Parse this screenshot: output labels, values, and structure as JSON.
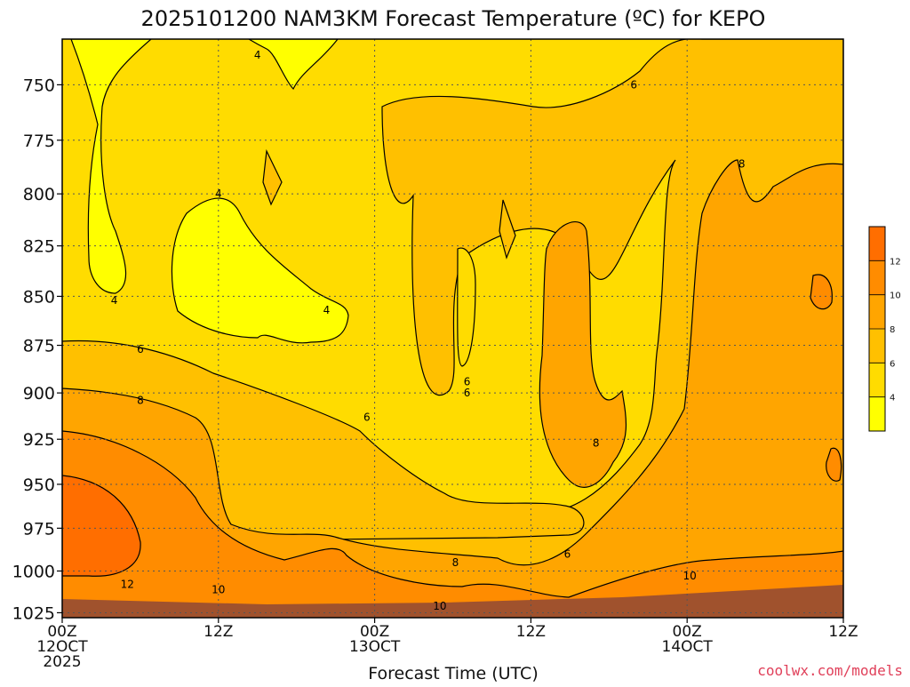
{
  "chart_data": {
    "type": "heatmap",
    "title": "2025101200 NAM3KM Forecast Temperature (ºC) for KEPO",
    "xlabel": "Forecast Time (UTC)",
    "ylabel": "",
    "credit": "coolwx.com/models",
    "y_ticks": [
      "750",
      "775",
      "800",
      "825",
      "850",
      "875",
      "900",
      "925",
      "950",
      "975",
      "1000",
      "1025"
    ],
    "y_values": [
      750,
      775,
      800,
      825,
      850,
      875,
      900,
      925,
      950,
      975,
      1000,
      1025
    ],
    "ylim": [
      730,
      1028
    ],
    "y_scale": "log",
    "x_ticks": [
      {
        "hour": 0,
        "label1": "00Z",
        "label2": "12OCT",
        "label3": "2025"
      },
      {
        "hour": 12,
        "label1": "12Z",
        "label2": "",
        "label3": ""
      },
      {
        "hour": 24,
        "label1": "00Z",
        "label2": "13OCT",
        "label3": ""
      },
      {
        "hour": 36,
        "label1": "12Z",
        "label2": "",
        "label3": ""
      },
      {
        "hour": 48,
        "label1": "00Z",
        "label2": "14OCT",
        "label3": ""
      },
      {
        "hour": 60,
        "label1": "12Z",
        "label2": "",
        "label3": ""
      }
    ],
    "xlim": [
      0,
      60
    ],
    "grid": true,
    "colorbar": {
      "levels": [
        2,
        4,
        6,
        8,
        10,
        12,
        14
      ],
      "tick_labels": [
        "4",
        "6",
        "8",
        "10",
        "12"
      ],
      "colors": [
        "#ffff00",
        "#ffdc00",
        "#ffc000",
        "#ffa500",
        "#ff8c00",
        "#ff6e00"
      ],
      "placement": "right"
    },
    "contour_labels": [
      {
        "text": "4",
        "hour": 15.0,
        "p": 737
      },
      {
        "text": "4",
        "hour": 12.0,
        "p": 800
      },
      {
        "text": "4",
        "hour": 4.0,
        "p": 852
      },
      {
        "text": "4",
        "hour": 20.3,
        "p": 857
      },
      {
        "text": "6",
        "hour": 43.9,
        "p": 750
      },
      {
        "text": "6",
        "hour": 6.0,
        "p": 877
      },
      {
        "text": "6",
        "hour": 31.1,
        "p": 894
      },
      {
        "text": "6",
        "hour": 31.1,
        "p": 900
      },
      {
        "text": "6",
        "hour": 23.4,
        "p": 913
      },
      {
        "text": "6",
        "hour": 38.8,
        "p": 990
      },
      {
        "text": "8",
        "hour": 6.0,
        "p": 904
      },
      {
        "text": "8",
        "hour": 41.0,
        "p": 927
      },
      {
        "text": "8",
        "hour": 52.2,
        "p": 786
      },
      {
        "text": "8",
        "hour": 30.2,
        "p": 995
      },
      {
        "text": "10",
        "hour": 12.0,
        "p": 1011
      },
      {
        "text": "10",
        "hour": 29.0,
        "p": 1021
      },
      {
        "text": "10",
        "hour": 48.2,
        "p": 1003
      },
      {
        "text": "12",
        "hour": 5.0,
        "p": 1008
      }
    ]
  }
}
